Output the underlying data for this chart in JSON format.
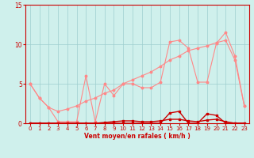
{
  "x": [
    0,
    1,
    2,
    3,
    4,
    5,
    6,
    7,
    8,
    9,
    10,
    11,
    12,
    13,
    14,
    15,
    16,
    17,
    18,
    19,
    20,
    21,
    22,
    23
  ],
  "rafales": [
    5.0,
    3.2,
    2.0,
    0.2,
    0.2,
    0.2,
    6.0,
    0.2,
    5.0,
    3.5,
    5.0,
    5.0,
    4.5,
    4.5,
    5.2,
    10.3,
    10.5,
    9.5,
    5.2,
    5.2,
    10.1,
    11.5,
    8.5,
    2.2
  ],
  "moyen_env": [
    5.0,
    3.2,
    2.0,
    1.5,
    1.8,
    2.2,
    2.8,
    3.2,
    3.8,
    4.2,
    5.0,
    5.5,
    6.0,
    6.5,
    7.2,
    8.0,
    8.5,
    9.2,
    9.5,
    9.8,
    10.2,
    10.5,
    8.0,
    2.2
  ],
  "moyen_low": [
    0.0,
    0.0,
    0.0,
    0.0,
    0.0,
    0.0,
    0.0,
    0.0,
    0.1,
    0.2,
    0.3,
    0.3,
    0.2,
    0.2,
    0.3,
    0.5,
    0.5,
    0.3,
    0.2,
    0.4,
    0.5,
    0.2,
    0.0,
    0.0
  ],
  "wind_spd": [
    0.0,
    0.0,
    0.0,
    0.0,
    0.0,
    0.0,
    0.0,
    0.0,
    0.0,
    0.0,
    0.0,
    0.0,
    0.0,
    0.0,
    0.0,
    1.3,
    1.5,
    0.0,
    0.0,
    1.2,
    1.0,
    0.0,
    0.0,
    0.0
  ],
  "ylim": [
    0,
    15
  ],
  "yticks": [
    0,
    5,
    10,
    15
  ],
  "bg_color": "#cff0ec",
  "grid_color": "#9ecece",
  "line_light": "#ff8888",
  "line_dark": "#cc0000",
  "xlabel": "Vent moyen/en rafales ( km/h )",
  "xlabel_color": "#cc0000",
  "xlabel_fontsize": 5.5,
  "tick_fontsize": 5,
  "ytick_fontsize": 5.5
}
